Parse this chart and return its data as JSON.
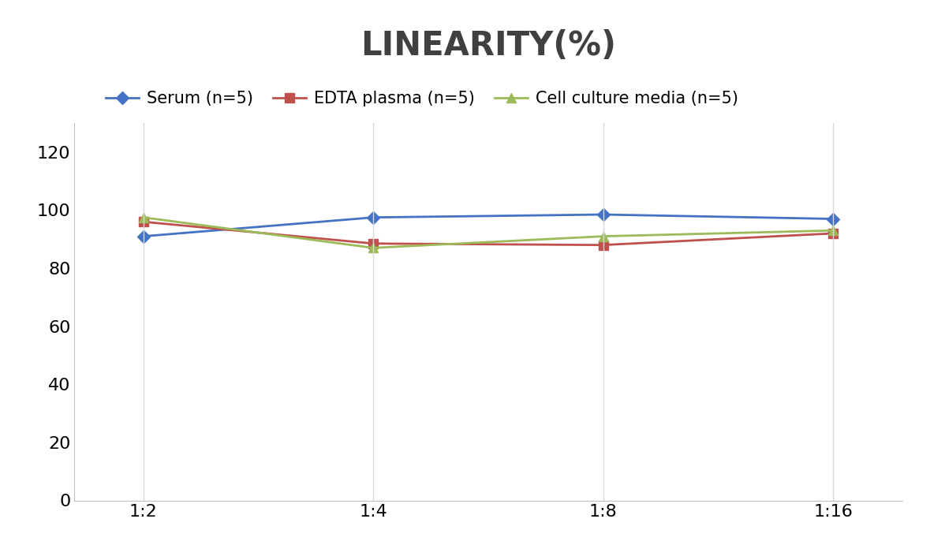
{
  "title": "LINEARITY(%)",
  "title_fontsize": 30,
  "title_fontweight": "bold",
  "title_color": "#404040",
  "x_labels": [
    "1:2",
    "1:4",
    "1:8",
    "1:16"
  ],
  "x_positions": [
    0,
    1,
    2,
    3
  ],
  "series": [
    {
      "label": "Serum (n=5)",
      "values": [
        91,
        97.5,
        98.5,
        97
      ],
      "color": "#4472C4",
      "marker": "D",
      "markersize": 8,
      "linewidth": 2
    },
    {
      "label": "EDTA plasma (n=5)",
      "values": [
        96,
        88.5,
        88,
        92
      ],
      "color": "#C0504D",
      "marker": "s",
      "markersize": 8,
      "linewidth": 2
    },
    {
      "label": "Cell culture media (n=5)",
      "values": [
        97.5,
        87,
        91,
        93
      ],
      "color": "#9BBB59",
      "marker": "^",
      "markersize": 9,
      "linewidth": 2
    }
  ],
  "ylim": [
    0,
    130
  ],
  "yticks": [
    0,
    20,
    40,
    60,
    80,
    100,
    120
  ],
  "grid_color": "#D9D9D9",
  "background_color": "#FFFFFF",
  "legend_fontsize": 15,
  "axis_fontsize": 16
}
